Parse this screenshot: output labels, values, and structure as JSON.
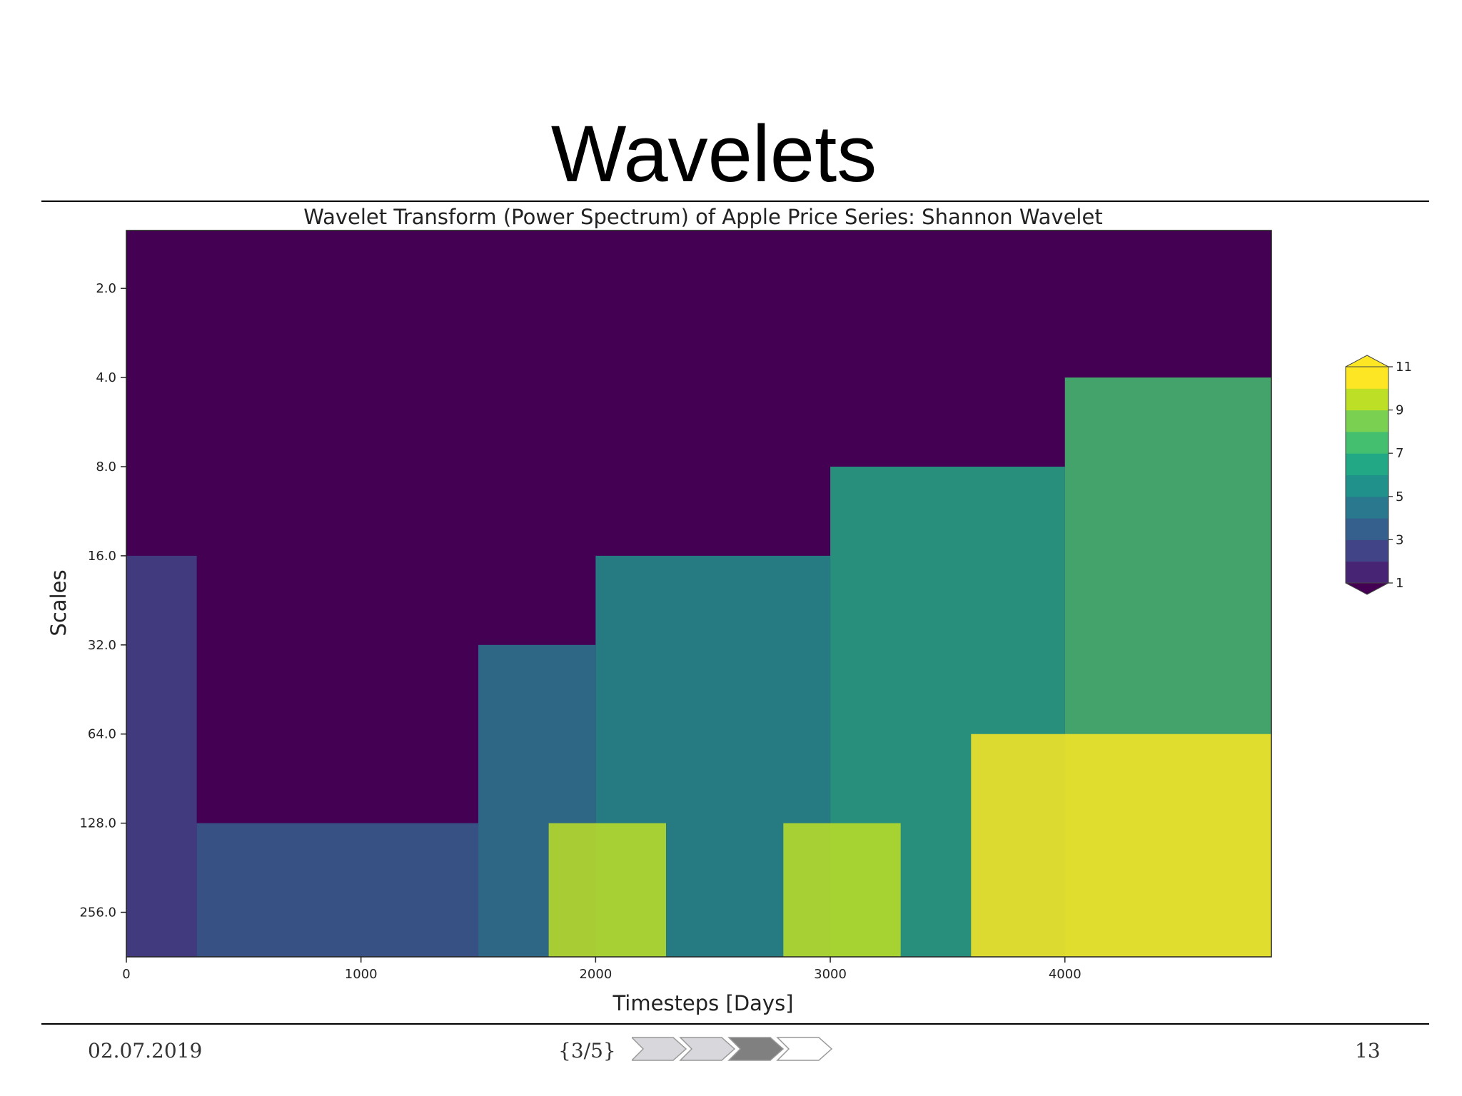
{
  "slide": {
    "title": "Wavelets",
    "date": "02.07.2019",
    "section": "{3/5}",
    "page_number": "13",
    "progress": {
      "steps": 4,
      "current": 3
    }
  },
  "colors": {
    "viridis": [
      "#440154",
      "#482475",
      "#414487",
      "#355f8d",
      "#2a788e",
      "#21918c",
      "#22a884",
      "#44bf70",
      "#7ad151",
      "#bddf26",
      "#fde725"
    ]
  },
  "chart_data": {
    "type": "heatmap",
    "title": "Wavelet Transform (Power Spectrum) of Apple Price Series: Shannon Wavelet",
    "xlabel": "Timesteps [Days]",
    "ylabel": "Scales",
    "xlim": [
      0,
      4880
    ],
    "ylim_log2": [
      0.35,
      8.5
    ],
    "x_ticks": [
      0,
      1000,
      2000,
      3000,
      4000
    ],
    "y_ticks": [
      "2.0",
      "4.0",
      "8.0",
      "16.0",
      "32.0",
      "64.0",
      "128.0",
      "256.0"
    ],
    "y_tick_values": [
      2,
      4,
      8,
      16,
      32,
      64,
      128,
      256
    ],
    "colorbar": {
      "ticks": [
        1,
        3,
        5,
        7,
        9,
        11
      ],
      "min": 1,
      "max": 11,
      "extend": "both"
    },
    "regions": [
      {
        "x": [
          0,
          300
        ],
        "scale_top": 16,
        "level": 3
      },
      {
        "x": [
          300,
          1500
        ],
        "scale_top": 128,
        "level": 4
      },
      {
        "x": [
          1500,
          2000
        ],
        "scale_top": 32,
        "level": 5
      },
      {
        "x": [
          2000,
          3000
        ],
        "scale_top": 16,
        "level": 6
      },
      {
        "x": [
          3000,
          4000
        ],
        "scale_top": 8,
        "level": 7
      },
      {
        "x": [
          4000,
          4880
        ],
        "scale_top": 4,
        "level": 8
      },
      {
        "x": [
          1800,
          2300
        ],
        "scale_top": 128,
        "level": 10
      },
      {
        "x": [
          2800,
          3300
        ],
        "scale_top": 128,
        "level": 10
      },
      {
        "x": [
          3600,
          4880
        ],
        "scale_top": 64,
        "level": 11
      }
    ]
  }
}
